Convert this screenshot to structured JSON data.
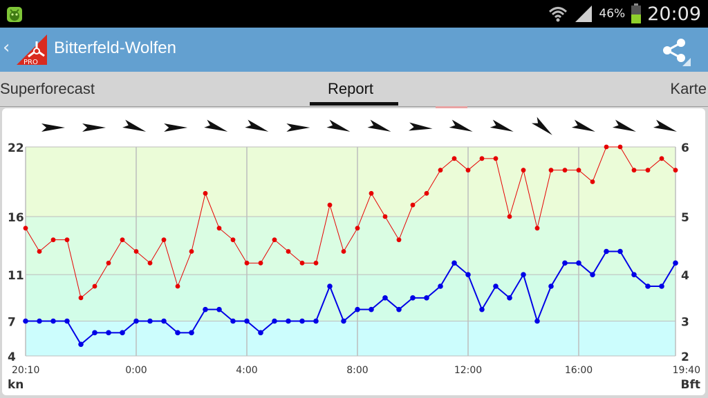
{
  "status_bar": {
    "app_icon": "android-robot-icon",
    "wifi_icon": "wifi-icon",
    "signal_icon": "signal-icon",
    "battery_percent": "46%",
    "battery_icon": "battery-icon",
    "time": "20:09"
  },
  "action_bar": {
    "back_icon": "chevron-left-icon",
    "logo_icon": "windfinder-pro-logo",
    "logo_text": "PRO",
    "title": "Bitterfeld-Wolfen",
    "share_icon": "share-icon"
  },
  "tabs": [
    {
      "label": "Superforecast",
      "selected": false
    },
    {
      "label": "Report",
      "selected": true
    },
    {
      "label": "Karte",
      "selected": false
    }
  ],
  "chart_data": {
    "type": "line",
    "left_axis_unit": "kn",
    "right_axis_unit": "Bft",
    "ylim": [
      4,
      22
    ],
    "left_ticks": [
      4,
      7,
      11,
      16,
      22
    ],
    "right_ticks": [
      {
        "label": "2",
        "kn": 4
      },
      {
        "label": "3",
        "kn": 7
      },
      {
        "label": "4",
        "kn": 11
      },
      {
        "label": "5",
        "kn": 16
      },
      {
        "label": "6",
        "kn": 22
      }
    ],
    "bands": [
      {
        "from": 4,
        "to": 7,
        "color": "#ccfdfd"
      },
      {
        "from": 7,
        "to": 11,
        "color": "#d2fde8"
      },
      {
        "from": 11,
        "to": 16,
        "color": "#dafde3"
      },
      {
        "from": 16,
        "to": 22,
        "color": "#ebfcd8"
      }
    ],
    "x_labels": [
      {
        "label": "20:10",
        "index": 0
      },
      {
        "label": "0:00",
        "index": 8
      },
      {
        "label": "4:00",
        "index": 16
      },
      {
        "label": "8:00",
        "index": 24
      },
      {
        "label": "12:00",
        "index": 32
      },
      {
        "label": "16:00",
        "index": 40
      },
      {
        "label": "19:40",
        "index": 47
      }
    ],
    "grid": true,
    "series": [
      {
        "color": "#e60000",
        "values": [
          15,
          13,
          14,
          14,
          9,
          10,
          12,
          14,
          13,
          12,
          14,
          10,
          13,
          18,
          15,
          14,
          12,
          12,
          14,
          13,
          12,
          12,
          17,
          13,
          15,
          18,
          16,
          14,
          17,
          18,
          20,
          21,
          20,
          21,
          21,
          16,
          20,
          15,
          20,
          20,
          20,
          19,
          22,
          22,
          20,
          20,
          21,
          20
        ]
      },
      {
        "color": "#0000e6",
        "values": [
          7,
          7,
          7,
          7,
          5,
          6,
          6,
          6,
          7,
          7,
          7,
          6,
          6,
          8,
          8,
          7,
          7,
          6,
          7,
          7,
          7,
          7,
          10,
          7,
          8,
          8,
          9,
          8,
          9,
          9,
          10,
          12,
          11,
          8,
          10,
          9,
          11,
          7,
          10,
          12,
          12,
          11,
          13,
          13,
          11,
          10,
          10,
          12
        ]
      }
    ],
    "wind_directions": [
      {
        "time": "20:10",
        "bearing": 270
      },
      {
        "time": "21:40",
        "bearing": 270
      },
      {
        "time": "23:10",
        "bearing": 290
      },
      {
        "time": "0:40",
        "bearing": 270
      },
      {
        "time": "2:10",
        "bearing": 290
      },
      {
        "time": "3:40",
        "bearing": 290
      },
      {
        "time": "5:10",
        "bearing": 270
      },
      {
        "time": "6:40",
        "bearing": 290
      },
      {
        "time": "8:10",
        "bearing": 290
      },
      {
        "time": "9:40",
        "bearing": 275
      },
      {
        "time": "11:10",
        "bearing": 290
      },
      {
        "time": "12:40",
        "bearing": 290
      },
      {
        "time": "14:10",
        "bearing": 310
      },
      {
        "time": "15:40",
        "bearing": 290
      },
      {
        "time": "17:10",
        "bearing": 290
      },
      {
        "time": "18:40",
        "bearing": 290
      }
    ]
  }
}
